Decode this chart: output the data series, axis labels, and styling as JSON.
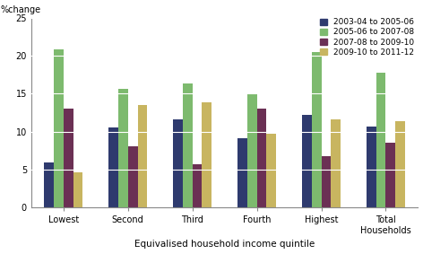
{
  "categories": [
    "Lowest",
    "Second",
    "Third",
    "Fourth",
    "Highest",
    "Total\nHouseholds"
  ],
  "series": {
    "2003-04 to 2005-06": [
      6.0,
      10.6,
      11.6,
      9.1,
      12.2,
      10.7
    ],
    "2005-06 to 2007-08": [
      20.8,
      15.6,
      16.3,
      14.9,
      20.5,
      17.8
    ],
    "2007-08 to 2009-10": [
      13.0,
      8.1,
      5.7,
      13.0,
      6.8,
      8.6
    ],
    "2009-10 to 2011-12": [
      4.6,
      13.5,
      13.9,
      9.7,
      11.6,
      11.4
    ]
  },
  "colors": {
    "2003-04 to 2005-06": "#2e3a6e",
    "2005-06 to 2007-08": "#7dba6e",
    "2007-08 to 2009-10": "#6b3054",
    "2009-10 to 2011-12": "#c8b560"
  },
  "ylabel": "%change",
  "xlabel": "Equivalised household income quintile",
  "ylim": [
    0,
    25
  ],
  "yticks": [
    0,
    5,
    10,
    15,
    20,
    25
  ],
  "grid_color": "#ffffff",
  "bg_color": "#ffffff",
  "bar_width": 0.15,
  "legend_fontsize": 6.5,
  "axis_fontsize": 7,
  "label_fontsize": 7.5
}
